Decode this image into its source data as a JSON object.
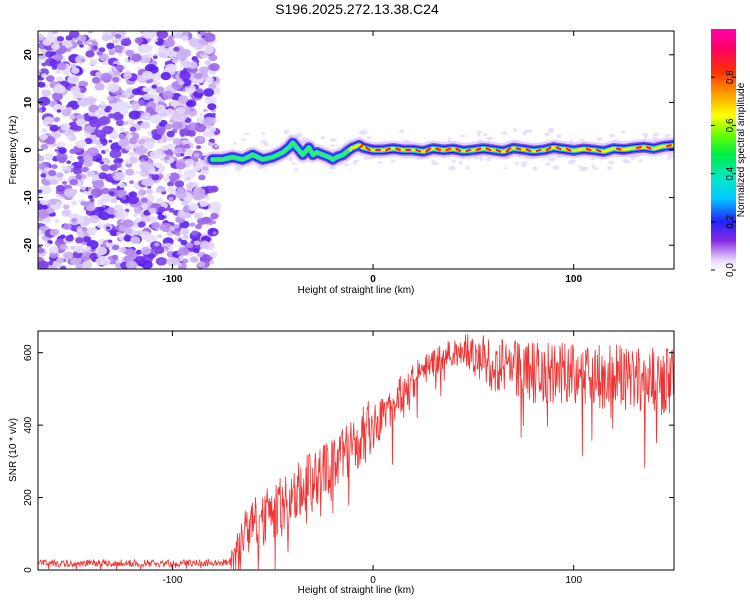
{
  "chart_data": [
    {
      "type": "heatmap",
      "title": "S196.2025.272.13.38.C24",
      "xlabel": "Height of straight line (km)",
      "ylabel": "Frequency (Hz)",
      "xlim": [
        -167,
        150
      ],
      "ylim": [
        -25,
        25
      ],
      "xticks": [
        -100,
        0,
        100
      ],
      "xtick_labels": [
        "-100",
        "0",
        "100"
      ],
      "yticks": [
        -20,
        -10,
        0,
        10,
        20
      ],
      "ytick_labels": [
        "-20",
        "-10",
        "0",
        "10",
        "20"
      ],
      "colorbar": {
        "label": "Normalized spectral amplitude",
        "range": [
          0,
          1
        ],
        "ticks": [
          0.0,
          0.2,
          0.4,
          0.6,
          0.8
        ],
        "tick_labels": [
          "0.0",
          "0.2",
          "0.4",
          "0.6",
          "0.8"
        ]
      },
      "noise_region_x": [
        -167,
        -80
      ],
      "ridge": {
        "x": [
          -80,
          -75,
          -70,
          -65,
          -60,
          -55,
          -50,
          -45,
          -42,
          -40,
          -38,
          -35,
          -32,
          -30,
          -28,
          -25,
          -22,
          -20,
          -18,
          -15,
          -12,
          -10,
          -7,
          -5,
          0,
          5,
          10,
          15,
          20,
          25,
          30,
          35,
          40,
          45,
          50,
          55,
          60,
          65,
          70,
          75,
          80,
          85,
          90,
          95,
          100,
          105,
          110,
          115,
          120,
          125,
          130,
          135,
          140,
          145,
          150
        ],
        "freq": [
          -2,
          -2,
          -1.5,
          -2,
          -1,
          -2,
          -1.5,
          -0.5,
          0.5,
          1.5,
          0.5,
          -1,
          0.5,
          -1,
          -0.5,
          -1,
          -1.5,
          -2,
          -1.5,
          -1,
          0,
          0.5,
          1,
          0.5,
          0,
          0,
          0.3,
          0,
          0,
          -0.3,
          0.3,
          0,
          0.2,
          -0.2,
          0,
          0.3,
          0,
          -0.3,
          0.4,
          0.1,
          -0.2,
          0,
          0.5,
          0.2,
          -0.1,
          0.2,
          0,
          -0.3,
          0.3,
          0.1,
          0.4,
          0.6,
          0.3,
          0.8,
          1
        ],
        "amplitude": [
          0.45,
          0.5,
          0.45,
          0.5,
          0.5,
          0.55,
          0.5,
          0.45,
          0.5,
          0.55,
          0.5,
          0.55,
          0.6,
          0.6,
          0.55,
          0.6,
          0.55,
          0.6,
          0.65,
          0.7,
          0.75,
          0.8,
          0.85,
          0.9,
          1,
          0.95,
          0.9,
          0.95,
          1,
          0.95,
          0.9,
          0.95,
          0.9,
          0.85,
          0.9,
          0.95,
          0.9,
          0.85,
          0.9,
          0.85,
          0.9,
          0.85,
          0.9,
          0.85,
          0.8,
          0.85,
          0.9,
          0.8,
          0.85,
          0.8,
          0.85,
          0.9,
          0.8,
          0.85,
          0.8
        ]
      }
    },
    {
      "type": "line",
      "xlabel": "Height of straight line (km)",
      "ylabel": "SNR (10 * v/v)",
      "xlim": [
        -167,
        150
      ],
      "ylim": [
        0,
        660
      ],
      "xticks": [
        -100,
        0,
        100
      ],
      "xtick_labels": [
        "-100",
        "0",
        "100"
      ],
      "yticks": [
        0,
        200,
        400,
        600
      ],
      "ytick_labels": [
        "0",
        "200",
        "400",
        "600"
      ],
      "series": [
        {
          "name": "SNR",
          "color": "#ee3333",
          "x": [
            -167,
            -150,
            -130,
            -110,
            -90,
            -80,
            -72,
            -68,
            -65,
            -60,
            -55,
            -50,
            -45,
            -40,
            -35,
            -30,
            -25,
            -20,
            -15,
            -10,
            -5,
            0,
            5,
            10,
            15,
            20,
            25,
            30,
            35,
            40,
            45,
            50,
            55,
            60,
            65,
            70,
            75,
            80,
            85,
            90,
            95,
            100,
            105,
            110,
            115,
            120,
            125,
            130,
            135,
            140,
            145,
            150
          ],
          "y": [
            18,
            18,
            20,
            18,
            18,
            20,
            20,
            60,
            90,
            120,
            140,
            160,
            185,
            210,
            230,
            250,
            280,
            300,
            320,
            345,
            370,
            400,
            430,
            460,
            490,
            520,
            550,
            570,
            585,
            600,
            605,
            600,
            580,
            560,
            560,
            555,
            550,
            545,
            545,
            540,
            545,
            540,
            535,
            540,
            530,
            535,
            530,
            525,
            520,
            525,
            520,
            520
          ],
          "spread": [
            10,
            10,
            10,
            10,
            10,
            10,
            10,
            60,
            70,
            80,
            80,
            80,
            80,
            80,
            80,
            80,
            80,
            85,
            85,
            85,
            85,
            80,
            70,
            60,
            55,
            50,
            45,
            40,
            40,
            40,
            45,
            55,
            70,
            80,
            80,
            80,
            80,
            85,
            85,
            85,
            85,
            85,
            85,
            85,
            90,
            90,
            90,
            90,
            90,
            95,
            95,
            95
          ]
        }
      ]
    }
  ]
}
